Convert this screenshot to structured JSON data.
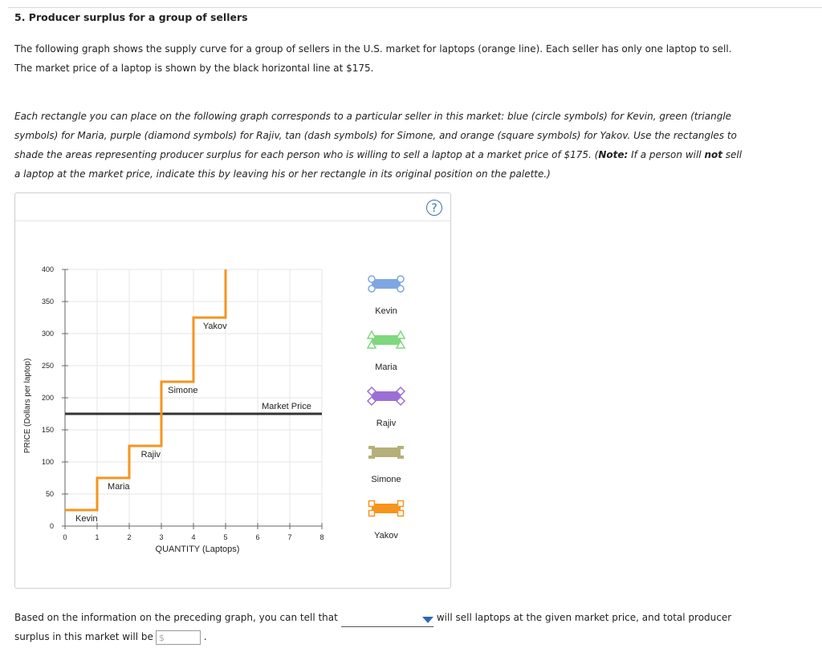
{
  "question": {
    "title": "5. Producer surplus for a group of sellers",
    "intro_line1": "The following graph shows the supply curve for a group of sellers in the U.S. market for laptops (orange line). Each seller has only one laptop to sell.",
    "intro_line2": "The market price of a laptop is shown by the black horizontal line at $175.",
    "instr_line1": "Each rectangle you can place on the following graph corresponds to a particular seller in this market: blue (circle symbols) for Kevin, green (triangle",
    "instr_line2": "symbols) for Maria, purple (diamond symbols) for Rajiv, tan (dash symbols) for Simone, and orange (square symbols) for Yakov. Use the rectangles to",
    "instr_line3_a": "shade the areas representing producer surplus for each person who is willing to sell a laptop at a market price of $175. (",
    "instr_note": "Note:",
    "instr_line3_b": " If a person will ",
    "instr_not": "not",
    "instr_line3_c": " sell",
    "instr_line4": "a laptop at the market price, indicate this by leaving his or her rectangle in its original position on the palette.)",
    "help_glyph": "?"
  },
  "chart_data": {
    "type": "line",
    "xlabel": "QUANTITY (Laptops)",
    "ylabel": "PRICE (Dollars per laptop)",
    "xlim": [
      0,
      8
    ],
    "ylim": [
      0,
      400
    ],
    "x_ticks": [
      "0",
      "1",
      "2",
      "3",
      "4",
      "5",
      "6",
      "7",
      "8"
    ],
    "y_ticks": [
      "0",
      "50",
      "100",
      "150",
      "200",
      "250",
      "300",
      "350",
      "400"
    ],
    "grid": true,
    "supply_steps": [
      {
        "seller": "Kevin",
        "from_q": 0,
        "to_q": 1,
        "price": 25
      },
      {
        "seller": "Maria",
        "from_q": 1,
        "to_q": 2,
        "price": 75
      },
      {
        "seller": "Rajiv",
        "from_q": 2,
        "to_q": 3,
        "price": 125
      },
      {
        "seller": "Simone",
        "from_q": 3,
        "to_q": 4,
        "price": 225
      },
      {
        "seller": "Yakov",
        "from_q": 4,
        "to_q": 5,
        "price": 325
      }
    ],
    "supply_top_price": 400,
    "market_price": 175,
    "market_price_label": "Market Price",
    "colors": {
      "supply": "#f7941d",
      "market": "#333333"
    }
  },
  "palette": [
    {
      "name": "Kevin",
      "color": "#7ea6e0",
      "symbol": "circle"
    },
    {
      "name": "Maria",
      "color": "#7ed87e",
      "symbol": "triangle"
    },
    {
      "name": "Rajiv",
      "color": "#9b6fd6",
      "symbol": "diamond"
    },
    {
      "name": "Simone",
      "color": "#b5b07a",
      "symbol": "dash"
    },
    {
      "name": "Yakov",
      "color": "#f7941d",
      "symbol": "square"
    }
  ],
  "answer": {
    "text_a": "Based on the information on the preceding graph, you can tell that",
    "text_b": "will sell laptops at the given market price, and total producer",
    "text_c": "surplus in this market will be",
    "money_prefix": "$",
    "period": "."
  }
}
